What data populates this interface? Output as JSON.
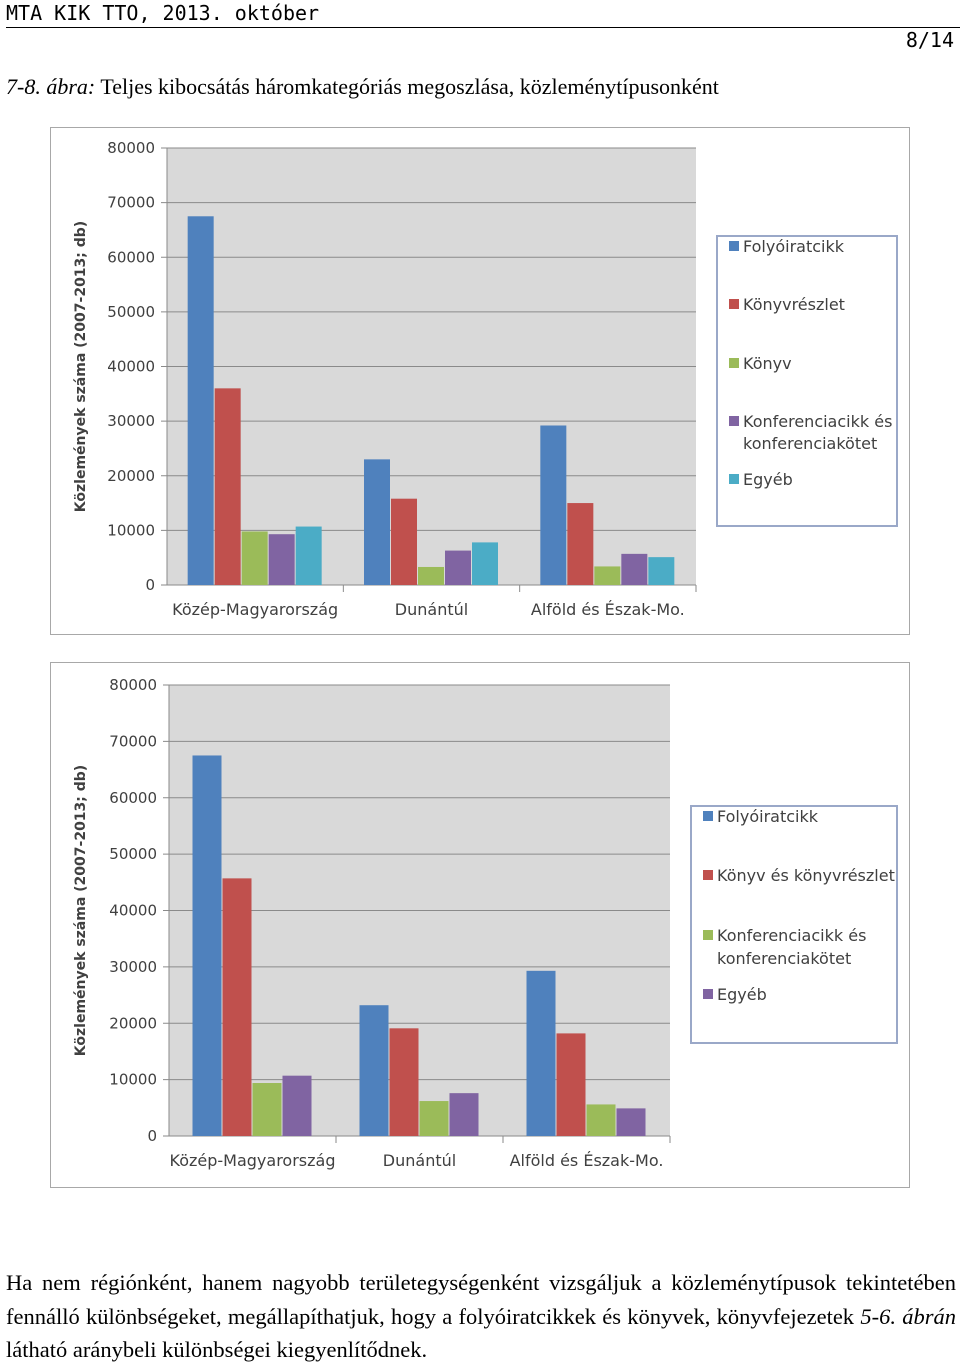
{
  "header": {
    "title": "MTA KIK TTO, 2013. október",
    "page": "8/14"
  },
  "caption": {
    "prefix": "7-8. ábra:",
    "text": "Teljes kibocsátás háromkategóriás megoszlása, közleménytípusonként"
  },
  "chart_data": [
    {
      "type": "bar",
      "title": "",
      "xlabel": "",
      "ylabel": "Közlemények száma (2007-2013; db)",
      "ylim": [
        0,
        80000
      ],
      "yticks": [
        "0",
        "10000",
        "20000",
        "30000",
        "40000",
        "50000",
        "60000",
        "70000",
        "80000"
      ],
      "grid": true,
      "legend_position": "right",
      "categories": [
        "Közép-Magyarország",
        "Dunántúl",
        "Alföld és Észak-Mo."
      ],
      "series": [
        {
          "name": "Folyóiratcikk",
          "color": "#4f81bd",
          "values": [
            67500,
            23000,
            29200
          ]
        },
        {
          "name": "Könyvrészlet",
          "color": "#c0504d",
          "values": [
            36000,
            15800,
            15000
          ]
        },
        {
          "name": "Könyv",
          "color": "#9bbb59",
          "values": [
            9800,
            3300,
            3400
          ]
        },
        {
          "name": "Konferenciacikk és konferenciakötet",
          "color": "#8064a2",
          "values": [
            9300,
            6300,
            5700
          ]
        },
        {
          "name": "Egyéb",
          "color": "#4bacc6",
          "values": [
            10700,
            7800,
            5100
          ]
        }
      ]
    },
    {
      "type": "bar",
      "title": "",
      "xlabel": "",
      "ylabel": "Közlemények száma (2007-2013; db)",
      "ylim": [
        0,
        80000
      ],
      "yticks": [
        "0",
        "10000",
        "20000",
        "30000",
        "40000",
        "50000",
        "60000",
        "70000",
        "80000"
      ],
      "grid": true,
      "legend_position": "right",
      "categories": [
        "Közép-Magyarország",
        "Dunántúl",
        "Alföld és Észak-Mo."
      ],
      "series": [
        {
          "name": "Folyóiratcikk",
          "color": "#4f81bd",
          "values": [
            67500,
            23200,
            29300
          ]
        },
        {
          "name": "Könyv és könyvrészlet",
          "color": "#c0504d",
          "values": [
            45700,
            19100,
            18200
          ]
        },
        {
          "name": "Konferenciacikk és konferenciakötet",
          "color": "#9bbb59",
          "values": [
            9400,
            6200,
            5600
          ]
        },
        {
          "name": "Egyéb",
          "color": "#8064a2",
          "values": [
            10700,
            7600,
            4900
          ]
        }
      ]
    }
  ],
  "body": {
    "text_before": "Ha nem régiónként, hanem nagyobb területegységenként vizsgáljuk a közleménytípusok tekintetében fennálló különbségeket, megállapíthatjuk, hogy a folyóiratcikkek és könyvek, könyvfejezetek ",
    "ref": "5-6. ábrán",
    "text_after": " látható aránybeli különbségei kiegyenlítődnek."
  }
}
